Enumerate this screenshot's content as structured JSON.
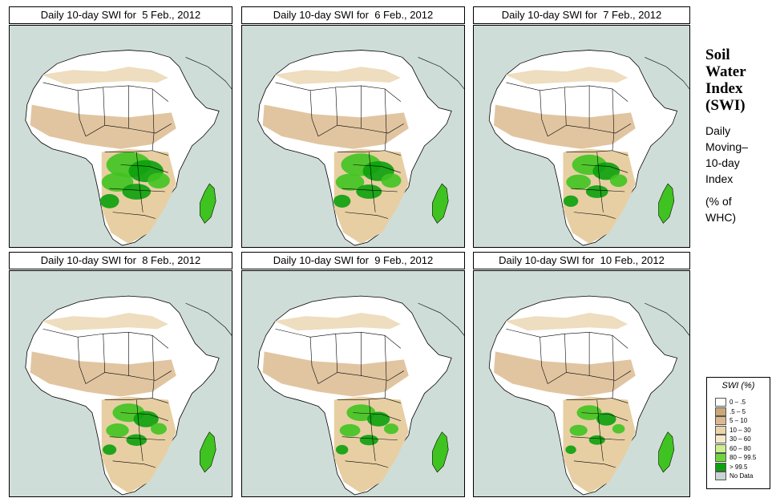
{
  "panels": [
    {
      "title": "Daily 10-day SWI for  5 Feb., 2012",
      "green_scale": 1.0
    },
    {
      "title": "Daily 10-day SWI for  6 Feb., 2012",
      "green_scale": 0.9
    },
    {
      "title": "Daily 10-day SWI for  7 Feb., 2012",
      "green_scale": 0.8
    },
    {
      "title": "Daily 10-day SWI for  8 Feb., 2012",
      "green_scale": 0.72
    },
    {
      "title": "Daily 10-day SWI for  9 Feb., 2012",
      "green_scale": 0.65
    },
    {
      "title": "Daily 10-day SWI for  10 Feb., 2012",
      "green_scale": 0.58
    }
  ],
  "sidebar": {
    "title_lines": [
      "Soil",
      "Water",
      "Index",
      "(SWI)"
    ],
    "subtitle_lines": [
      "Daily",
      "Moving–",
      "10-day",
      "Index"
    ],
    "unit_lines": [
      "(% of",
      " WHC)"
    ]
  },
  "legend": {
    "title": "SWI (%)",
    "items": [
      {
        "label": "0 – .5",
        "color": "#ffffff"
      },
      {
        "label": ".5 – 5",
        "color": "#c9a777"
      },
      {
        "label": "5 – 10",
        "color": "#dbb98d"
      },
      {
        "label": "10 – 30",
        "color": "#ecd3aa"
      },
      {
        "label": "30 – 60",
        "color": "#f6e8c8"
      },
      {
        "label": "60 – 80",
        "color": "#ccf08f"
      },
      {
        "label": "80 – 99.5",
        "color": "#6fd43a"
      },
      {
        "label": "> 99.5",
        "color": "#0da10f"
      },
      {
        "label": "No Data",
        "color": "#c8d6d2"
      }
    ]
  },
  "colors": {
    "sea": "#cfddd8",
    "sahara": "#ffffff",
    "sahel": "#dcbb90",
    "tan": "#e7cfa3",
    "green": "#3fc320",
    "dark_green": "#0aa00c",
    "border": "#000000"
  }
}
